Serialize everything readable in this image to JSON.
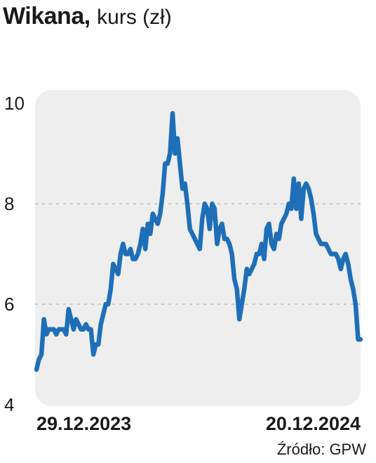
{
  "header": {
    "company": "Wikana,",
    "subtitle": "kurs (zł)"
  },
  "source": "Źródło: GPW",
  "colors": {
    "line": "#1f6fb8",
    "plot_bg": "#eeeeee",
    "grid": "#bdbdbd"
  },
  "chart_data": {
    "type": "line",
    "title": "Wikana, kurs (zł)",
    "xlabel": "",
    "ylabel": "",
    "ylim": [
      4,
      10
    ],
    "yticks": [
      4,
      6,
      8,
      10
    ],
    "grid": "horizontal dashed",
    "x_labels": [
      {
        "label": "29.12.2023",
        "pos": 0.0
      },
      {
        "label": "20.12.2024",
        "pos": 1.0
      }
    ],
    "series": [
      {
        "values": [
          4.7,
          4.9,
          5.0,
          5.7,
          5.4,
          5.5,
          5.5,
          5.5,
          5.4,
          5.5,
          5.5,
          5.5,
          5.4,
          5.9,
          5.7,
          5.5,
          5.7,
          5.6,
          5.5,
          5.5,
          5.6,
          5.5,
          5.5,
          5.0,
          5.2,
          5.2,
          5.6,
          5.8,
          6.0,
          6.0,
          6.3,
          6.8,
          6.7,
          6.6,
          7.0,
          7.2,
          7.0,
          7.0,
          7.1,
          6.9,
          6.9,
          7.0,
          7.2,
          7.5,
          7.1,
          7.6,
          7.4,
          7.8,
          7.7,
          7.6,
          7.8,
          8.2,
          8.8,
          8.8,
          9.0,
          9.8,
          9.0,
          9.3,
          8.8,
          8.3,
          8.4,
          8.0,
          7.5,
          7.4,
          7.3,
          7.2,
          7.1,
          7.7,
          8.0,
          7.9,
          7.5,
          8.0,
          7.9,
          7.2,
          7.5,
          7.6,
          7.3,
          7.3,
          7.2,
          7.0,
          6.5,
          6.3,
          5.7,
          6.0,
          6.3,
          6.7,
          6.6,
          6.7,
          6.8,
          7.0,
          7.0,
          7.2,
          6.9,
          7.5,
          7.6,
          7.2,
          7.1,
          7.4,
          7.3,
          7.6,
          7.7,
          7.8,
          8.0,
          7.9,
          8.5,
          7.9,
          8.4,
          7.7,
          8.3,
          8.4,
          8.3,
          8.1,
          7.8,
          7.4,
          7.3,
          7.2,
          7.2,
          7.2,
          7.1,
          7.0,
          7.0,
          7.0,
          6.9,
          6.7,
          6.9,
          7.0,
          6.8,
          6.5,
          6.3,
          6.0,
          5.3,
          5.3
        ]
      }
    ]
  }
}
